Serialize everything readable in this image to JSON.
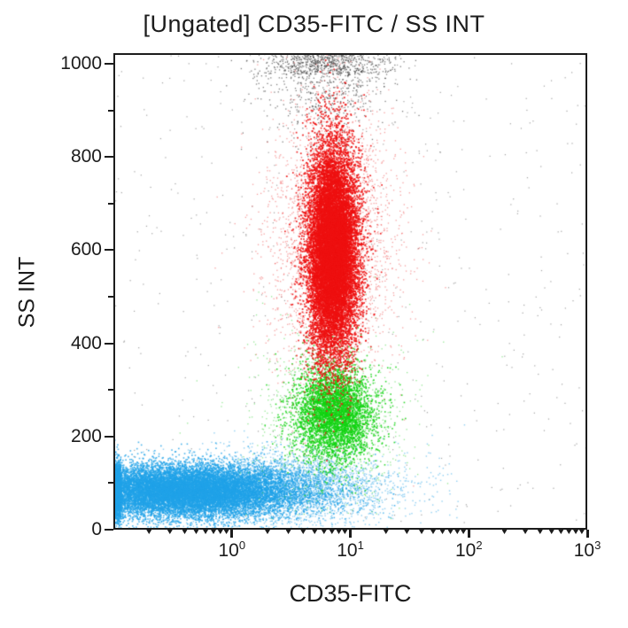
{
  "chart_data": {
    "type": "scatter",
    "subtype": "flow-cytometry-dot-plot",
    "title": "[Ungated] CD35-FITC / SS INT",
    "xlabel": "CD35-FITC",
    "ylabel": "SS INT",
    "grid": false,
    "legend": false,
    "x_axis": {
      "scale": "log10",
      "log_range": [
        -1,
        3
      ],
      "major_ticks": [
        {
          "mantissa": "10",
          "exponent": "0",
          "log": 0
        },
        {
          "mantissa": "10",
          "exponent": "1",
          "log": 1
        },
        {
          "mantissa": "10",
          "exponent": "2",
          "log": 2
        },
        {
          "mantissa": "10",
          "exponent": "3",
          "log": 3
        }
      ],
      "minor_tick_mantissas": [
        2,
        3,
        4,
        5,
        6,
        7,
        8,
        9
      ]
    },
    "y_axis": {
      "scale": "linear",
      "range": [
        0,
        1023
      ],
      "major_ticks": [
        0,
        200,
        400,
        600,
        800,
        1000
      ],
      "minor_ticks": [
        100,
        300,
        500,
        700,
        900
      ]
    },
    "axis_color": "#1c1c1c",
    "background_color": "#ffffff",
    "populations": [
      {
        "name": "background-noise",
        "color": "#4a4a4a",
        "dist": "uniform",
        "n": 520,
        "x_log_range": [
          -1,
          3
        ],
        "y_range": [
          0,
          1023
        ],
        "size": 1.2,
        "alpha": 0.5
      },
      {
        "name": "saturated-events-top",
        "color": "#3c3c3c",
        "dist": "normal",
        "n": 1150,
        "x_log_mean": 0.78,
        "x_log_sd": 0.27,
        "y_mean": 1005,
        "y_sd": 78,
        "size": 1.3,
        "alpha": 0.65,
        "edge_jitter_y": 45
      },
      {
        "name": "lymphocytes-tail",
        "color": "#23a4e9",
        "dist": "normal",
        "n": 3400,
        "x_log_mean": 0.5,
        "x_log_sd": 0.48,
        "y_mean": 90,
        "y_sd": 40,
        "size": 1.4,
        "alpha": 0.5
      },
      {
        "name": "lymphocytes",
        "color": "#21a3e8",
        "dist": "normal",
        "n": 16000,
        "x_log_mean": -0.42,
        "x_log_sd": 0.5,
        "y_mean": 85,
        "y_sd": 28,
        "size": 1.6,
        "alpha": 0.8,
        "edge_jitter_x": 0.06
      },
      {
        "name": "monocytes-halo",
        "color": "#17cf17",
        "dist": "normal",
        "n": 1000,
        "x_log_mean": 0.82,
        "x_log_sd": 0.33,
        "y_mean": 245,
        "y_sd": 95,
        "size": 1.3,
        "alpha": 0.45
      },
      {
        "name": "monocytes",
        "color": "#12d412",
        "dist": "normal",
        "n": 4200,
        "x_log_mean": 0.86,
        "x_log_sd": 0.165,
        "y_mean": 252,
        "y_sd": 52,
        "size": 1.6,
        "alpha": 0.85
      },
      {
        "name": "granulocytes-halo",
        "color": "#ea1514",
        "dist": "normal",
        "n": 3200,
        "x_log_mean": 0.84,
        "x_log_sd": 0.27,
        "y_mean": 610,
        "y_sd": 150,
        "size": 1.3,
        "alpha": 0.4
      },
      {
        "name": "granulocytes",
        "color": "#ee1111",
        "dist": "normal",
        "n": 15000,
        "x_log_mean": 0.845,
        "x_log_sd": 0.105,
        "y_mean": 600,
        "y_sd": 112,
        "size": 1.7,
        "alpha": 0.9
      }
    ]
  }
}
